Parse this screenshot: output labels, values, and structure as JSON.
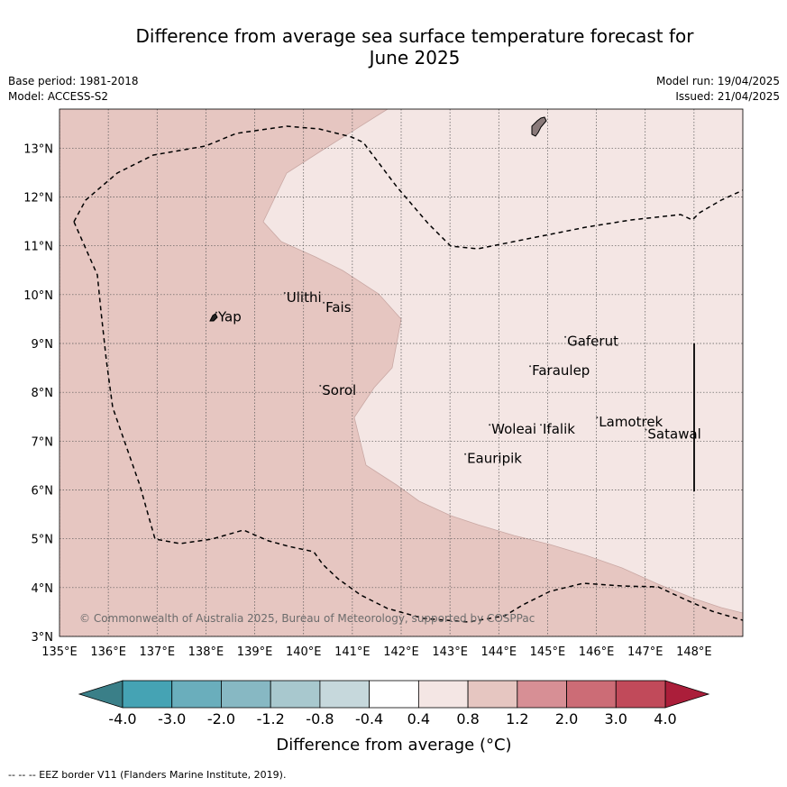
{
  "title_line1": "Difference from average sea surface temperature forecast for",
  "title_line2": "June 2025",
  "base_period": "Base period: 1981-2018",
  "model": "Model: ACCESS-S2",
  "model_run": "Model run: 19/04/2025",
  "issued": "Issued: 21/04/2025",
  "copyright": "© Commonwealth of Australia 2025, Bureau of Meteorology, supported by COSPPac",
  "footer_legend": "--  --  -- EEZ border V11 (Flanders Marine Institute, 2019).",
  "map": {
    "lon_range": [
      135,
      149
    ],
    "lat_range": [
      3,
      13.8
    ],
    "lon_ticks": [
      "135°E",
      "136°E",
      "137°E",
      "138°E",
      "139°E",
      "140°E",
      "141°E",
      "142°E",
      "143°E",
      "144°E",
      "145°E",
      "146°E",
      "147°E",
      "148°E"
    ],
    "lat_ticks": [
      "3°N",
      "4°N",
      "5°N",
      "6°N",
      "7°N",
      "8°N",
      "9°N",
      "10°N",
      "11°N",
      "12°N",
      "13°N"
    ],
    "places": [
      {
        "name": "Yap",
        "lon": 138.25,
        "lat": 9.45
      },
      {
        "name": "Ulithi",
        "lon": 139.65,
        "lat": 9.85
      },
      {
        "name": "Fais",
        "lon": 140.45,
        "lat": 9.65
      },
      {
        "name": "Sorol",
        "lon": 140.38,
        "lat": 7.95
      },
      {
        "name": "Gaferut",
        "lon": 145.4,
        "lat": 8.95
      },
      {
        "name": "Faraulep",
        "lon": 144.68,
        "lat": 8.35
      },
      {
        "name": "Woleai",
        "lon": 143.85,
        "lat": 7.15
      },
      {
        "name": "Ifalik",
        "lon": 144.9,
        "lat": 7.15
      },
      {
        "name": "Eauripik",
        "lon": 143.35,
        "lat": 6.55
      },
      {
        "name": "Lamotrek",
        "lon": 146.05,
        "lat": 7.3
      },
      {
        "name": "Satawal",
        "lon": 147.05,
        "lat": 7.05
      }
    ]
  },
  "colorbar": {
    "ticks": [
      "-4.0",
      "-3.0",
      "-2.0",
      "-1.2",
      "-0.8",
      "-0.4",
      "0.4",
      "0.8",
      "1.2",
      "2.0",
      "3.0",
      "4.0"
    ],
    "colors": [
      "#45a3b4",
      "#6aaebc",
      "#87b8c3",
      "#a8c8ce",
      "#c6d8dc",
      "#ffffff",
      "#f4e6e4",
      "#e6c6c1",
      "#d78f95",
      "#cc6c76",
      "#c14a5a"
    ],
    "under_color": "#3a7f88",
    "over_color": "#ab1e3a",
    "label": "Difference from average (°C)"
  },
  "colors": {
    "warm_fill": "#e6c6c1",
    "light_fill": "#f4e6e4"
  }
}
